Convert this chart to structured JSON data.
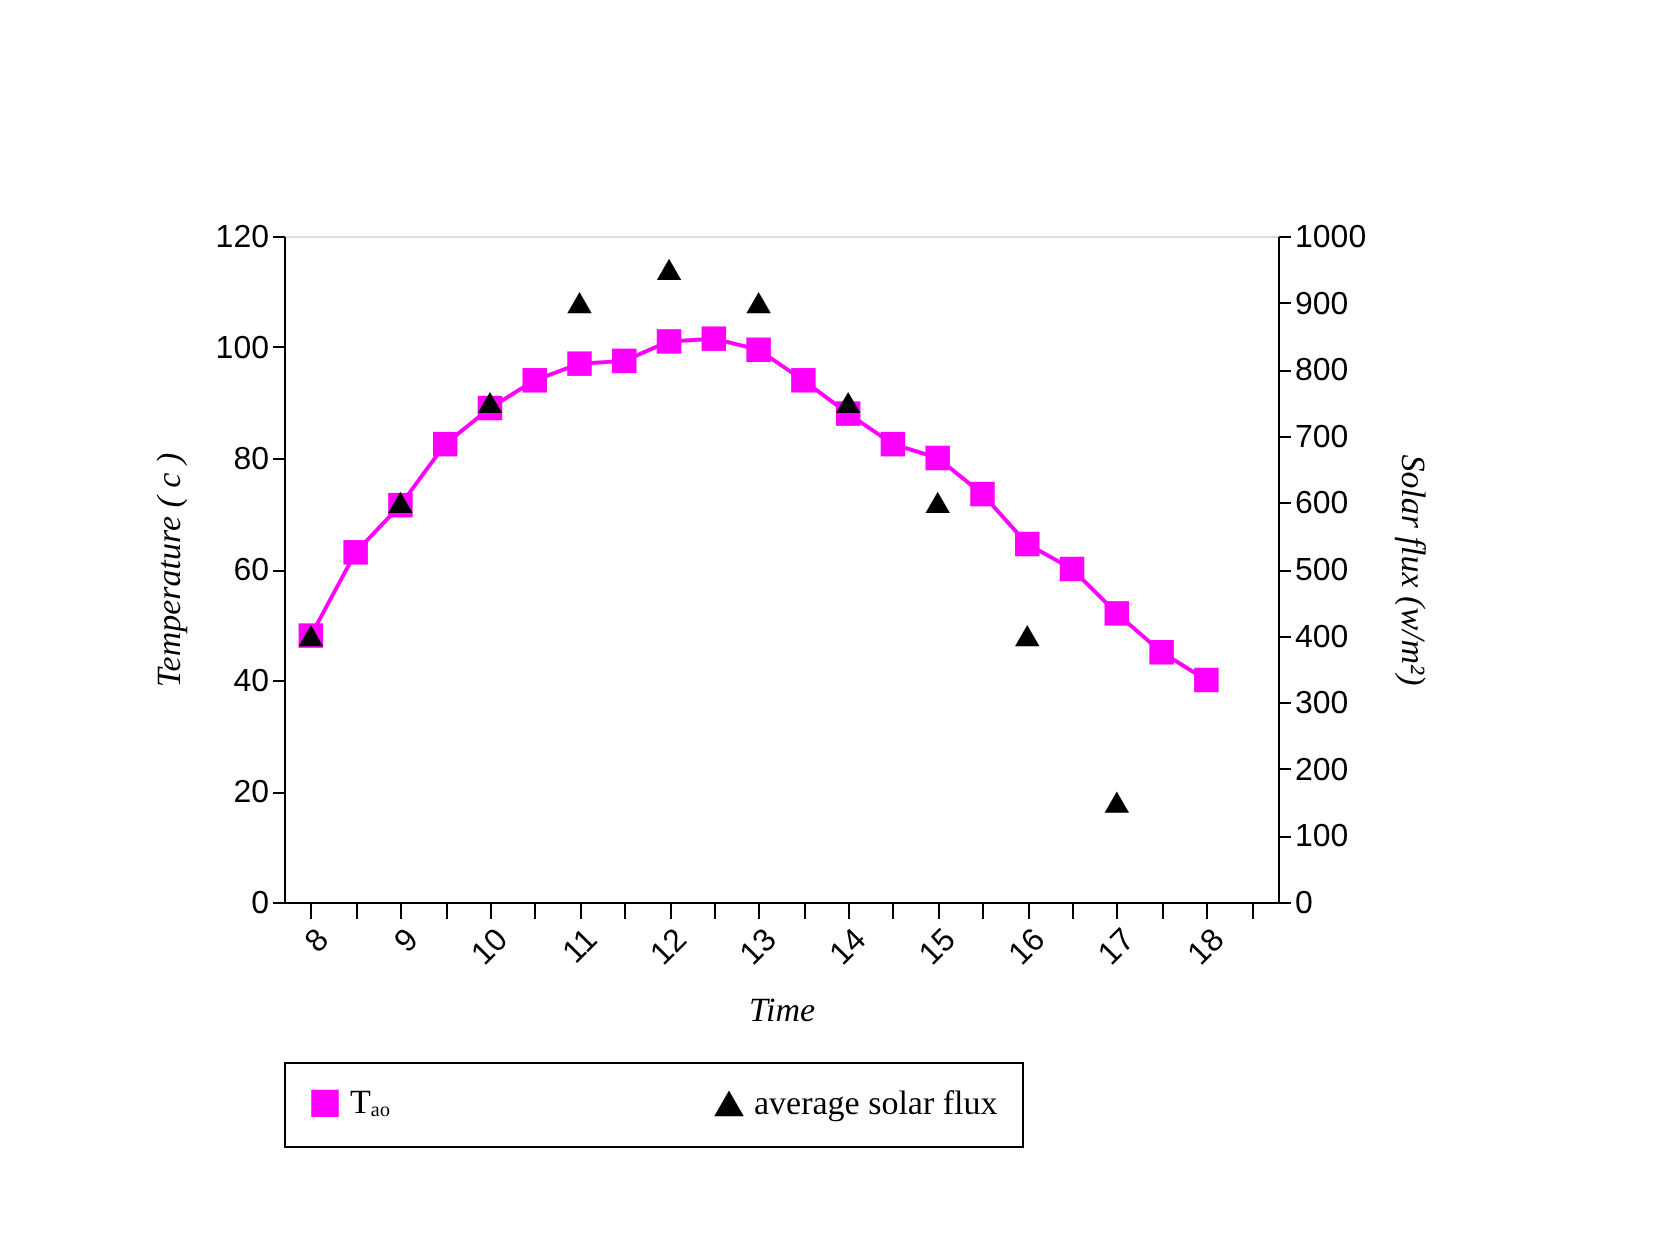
{
  "chart_data": {
    "type": "line",
    "xlabel": "Time",
    "ylabel": "Temperature ( c )",
    "y2label": "Solar flux (w/m²)",
    "xlim": [
      7.7,
      18.8
    ],
    "xticks": [
      8,
      {
        "value": 8.5,
        "label": null
      },
      9,
      {
        "value": 9.5,
        "label": null
      },
      10,
      {
        "value": 10.5,
        "label": null
      },
      11,
      {
        "value": 11.5,
        "label": null
      },
      12,
      {
        "value": 12.5,
        "label": null
      },
      13,
      {
        "value": 13.5,
        "label": null
      },
      14,
      {
        "value": 14.5,
        "label": null
      },
      15,
      {
        "value": 15.5,
        "label": null
      },
      16,
      {
        "value": 16.5,
        "label": null
      },
      17,
      {
        "value": 17.5,
        "label": null
      },
      18,
      {
        "value": 18.5,
        "label": null
      }
    ],
    "ylim": [
      0,
      120
    ],
    "yticks": [
      0,
      20,
      40,
      60,
      80,
      100,
      120
    ],
    "y2lim": [
      0,
      1000
    ],
    "y2ticks": [
      0,
      100,
      200,
      300,
      400,
      500,
      600,
      700,
      800,
      900,
      {
        "value": 1000,
        "label": "1000"
      }
    ],
    "series": [
      {
        "name": "Tₐₒ",
        "marker": "square",
        "line_style": "solid",
        "color": "#ff00ff",
        "x": [
          8,
          8.5,
          9,
          9.5,
          10,
          10.5,
          11,
          11.5,
          12,
          12.5,
          13,
          13.5,
          14,
          14.5,
          15,
          15.5,
          16,
          16.5,
          17,
          17.5,
          18
        ],
        "values": [
          48,
          63,
          71.5,
          82.5,
          89,
          94,
          97,
          97.5,
          101,
          101.5,
          99.5,
          94,
          88,
          82.5,
          80,
          73.5,
          64.5,
          60,
          52,
          45,
          40
        ]
      },
      {
        "name": "average solar flux",
        "type": "scatter",
        "marker": "triangle",
        "axis": "y2",
        "color": "#000000",
        "x": [
          8,
          9,
          10,
          11,
          12,
          13,
          14,
          15,
          16,
          17
        ],
        "values": [
          400,
          600,
          750,
          900,
          950,
          900,
          750,
          600,
          400,
          150
        ]
      }
    ],
    "legend": "bottom",
    "grid": false
  }
}
